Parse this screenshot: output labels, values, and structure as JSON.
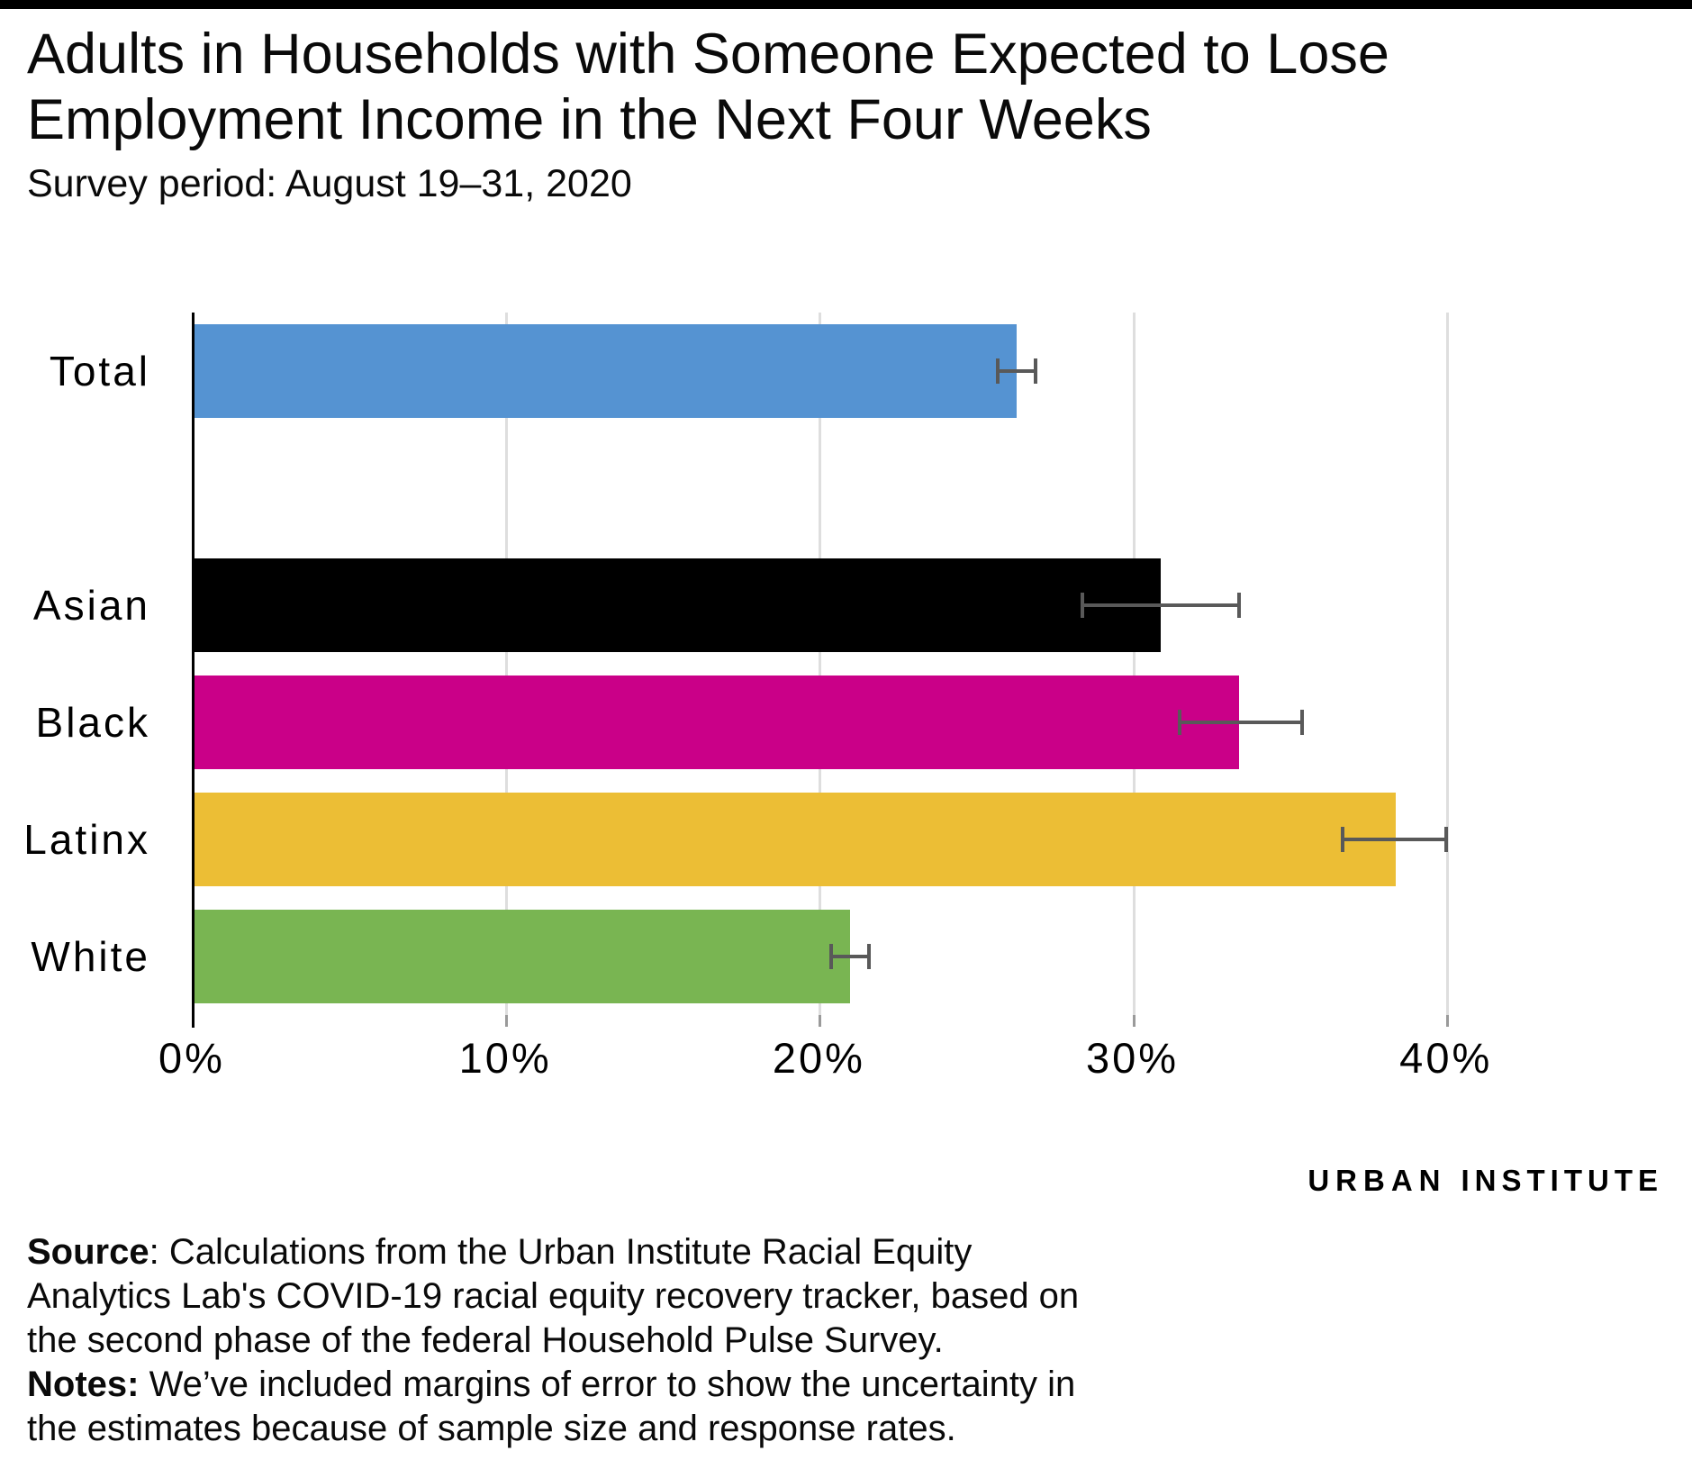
{
  "header": {
    "title_line1": "Adults in Households with Someone Expected to Lose",
    "title_line2": "Employment Income in the Next Four Weeks",
    "subtitle": "Survey period: August 19–31, 2020"
  },
  "chart_data": {
    "type": "bar",
    "orientation": "horizontal",
    "title": "Adults in Households with Someone Expected to Lose Employment Income in the Next Four Weeks",
    "subtitle": "Survey period: August 19–31, 2020",
    "categories": [
      "Total",
      "Asian",
      "Black",
      "Latinx",
      "White"
    ],
    "values": [
      26.3,
      30.9,
      33.4,
      38.4,
      21.0
    ],
    "error_low": [
      25.7,
      28.4,
      31.5,
      36.7,
      20.4
    ],
    "error_high": [
      26.9,
      33.4,
      35.4,
      40.0,
      21.6
    ],
    "series_colors": [
      "#5593d2",
      "#000000",
      "#ca0088",
      "#ecbe35",
      "#79b552"
    ],
    "x_tick_labels": [
      "0%",
      "10%",
      "20%",
      "30%",
      "40%"
    ],
    "x_tick_values": [
      0,
      10,
      20,
      30,
      40
    ],
    "xlim": [
      0,
      44
    ],
    "grid": true,
    "gridline_color": "#dedede",
    "axis_color": "#000000",
    "tick_color": "#9a9a9a",
    "error_bar_color": "#595959",
    "layout": {
      "gap_after_index": 0
    }
  },
  "branding": {
    "logo_part1": "URBAN",
    "logo_part2": "INSTITUTE",
    "logo_color1": "#5b9bd9",
    "logo_color2": "#000000"
  },
  "footer": {
    "source_label": "Source",
    "source_text": ": Calculations from the Urban Institute Racial Equity Analytics Lab's COVID-19 racial equity recovery tracker, based on the second phase of the federal Household Pulse Survey.",
    "notes_label": "Notes:",
    "notes_text": " We’ve included margins of error to show the uncertainty in the estimates because of sample size and response rates."
  }
}
